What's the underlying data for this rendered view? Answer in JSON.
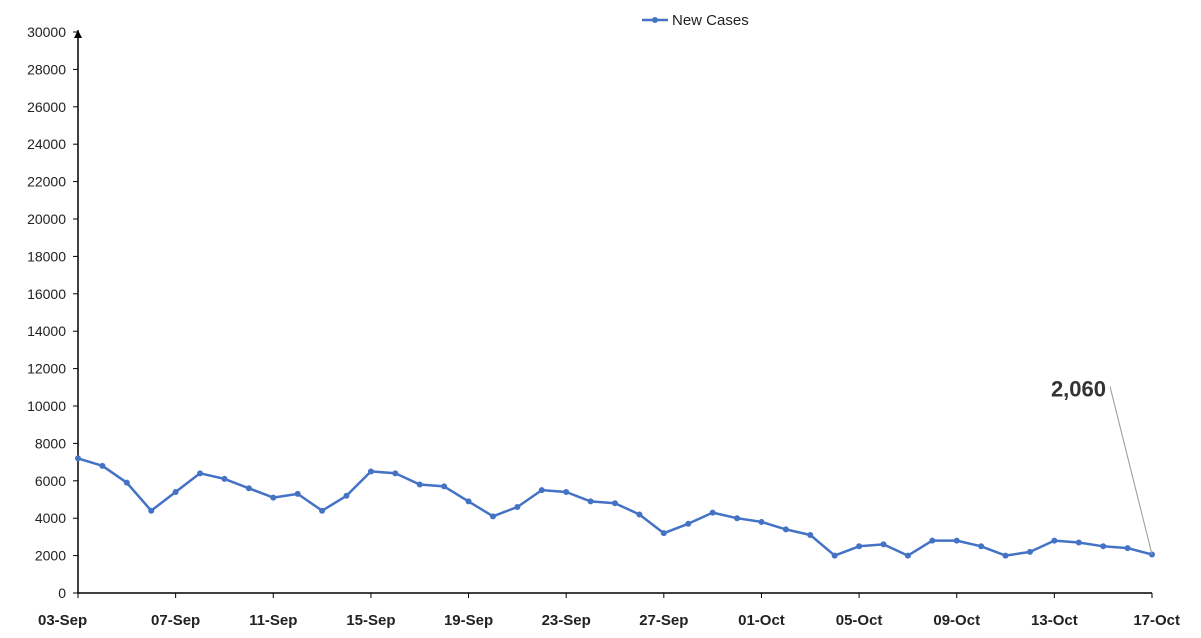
{
  "chart_data": {
    "type": "line",
    "x": [
      "03-Sep",
      "04-Sep",
      "05-Sep",
      "06-Sep",
      "07-Sep",
      "08-Sep",
      "09-Sep",
      "10-Sep",
      "11-Sep",
      "12-Sep",
      "13-Sep",
      "14-Sep",
      "15-Sep",
      "16-Sep",
      "17-Sep",
      "18-Sep",
      "19-Sep",
      "20-Sep",
      "21-Sep",
      "22-Sep",
      "23-Sep",
      "24-Sep",
      "25-Sep",
      "26-Sep",
      "27-Sep",
      "28-Sep",
      "29-Sep",
      "30-Sep",
      "01-Oct",
      "02-Oct",
      "03-Oct",
      "04-Oct",
      "05-Oct",
      "06-Oct",
      "07-Oct",
      "08-Oct",
      "09-Oct",
      "10-Oct",
      "11-Oct",
      "12-Oct",
      "13-Oct",
      "14-Oct",
      "15-Oct",
      "16-Oct",
      "17-Oct"
    ],
    "x_tick_labels": [
      "03-Sep",
      "07-Sep",
      "11-Sep",
      "15-Sep",
      "19-Sep",
      "23-Sep",
      "27-Sep",
      "01-Oct",
      "05-Oct",
      "09-Oct",
      "13-Oct",
      "17-Oct"
    ],
    "series": [
      {
        "name": "New Cases",
        "color": "#4472C4",
        "values": [
          7200,
          6800,
          5900,
          4400,
          5400,
          6400,
          6100,
          5600,
          5100,
          5300,
          4400,
          5200,
          6500,
          6400,
          5800,
          5700,
          4900,
          4100,
          4600,
          5500,
          5400,
          4900,
          4800,
          4200,
          3200,
          3700,
          4300,
          4000,
          3800,
          3400,
          3100,
          2000,
          2500,
          2600,
          2000,
          2800,
          2800,
          2500,
          2000,
          2200,
          2800,
          2700,
          2500,
          2400,
          2060
        ]
      }
    ],
    "y_ticks": [
      "0",
      "2000",
      "4000",
      "6000",
      "8000",
      "10000",
      "12000",
      "14000",
      "16000",
      "18000",
      "20000",
      "22000",
      "24000",
      "26000",
      "28000",
      "30000"
    ],
    "ylim": [
      0,
      30000
    ],
    "annotation": {
      "text": "2,060",
      "x": "17-Oct",
      "y": 2060
    },
    "legend": "top-center",
    "grid": false
  }
}
